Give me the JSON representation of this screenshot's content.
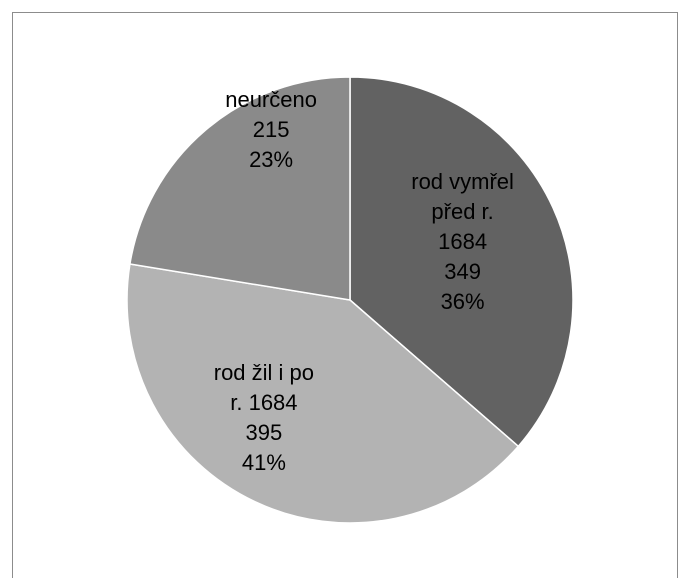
{
  "chart_data": {
    "type": "pie",
    "start_angle_deg": 0,
    "direction": "clockwise",
    "slices": [
      {
        "category_lines": [
          "rod vymřel",
          "před r.",
          "1684"
        ],
        "value": 349,
        "value_label": "349",
        "percent_label": "36%",
        "color": "#626262"
      },
      {
        "category_lines": [
          "rod žil i po",
          "r. 1684"
        ],
        "value": 395,
        "value_label": "395",
        "percent_label": "41%",
        "color": "#b3b3b3"
      },
      {
        "category_lines": [
          "neurčeno"
        ],
        "value": 215,
        "value_label": "215",
        "percent_label": "23%",
        "color": "#8a8a8a"
      }
    ]
  }
}
